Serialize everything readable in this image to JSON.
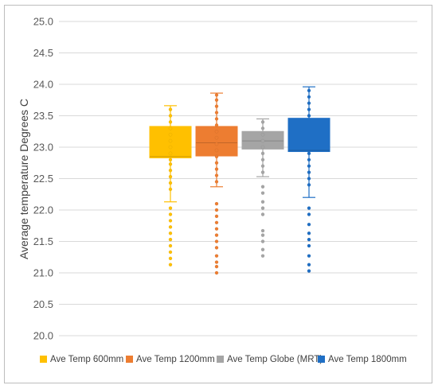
{
  "chart_data": {
    "type": "box",
    "title": "",
    "ylabel": "Average temperature Degrees C",
    "ylim": [
      20.0,
      25.0
    ],
    "ytick_step": 0.5,
    "yticks": [
      "20.0",
      "20.5",
      "21.0",
      "21.5",
      "22.0",
      "22.5",
      "23.0",
      "23.5",
      "24.0",
      "24.5",
      "25.0"
    ],
    "grid": true,
    "legend_position": "bottom",
    "series": [
      {
        "name": "Ave Temp 600mm",
        "color": "#ffc000",
        "q1": 22.83,
        "median": 22.85,
        "q3": 23.33,
        "whisker_low": 22.13,
        "whisker_high": 23.66,
        "points": [
          21.13,
          21.23,
          21.33,
          21.43,
          21.53,
          21.63,
          21.73,
          21.83,
          21.93,
          22.03,
          22.33,
          22.43,
          22.53,
          22.63,
          22.73,
          22.8,
          22.9,
          23.0,
          23.1,
          23.2,
          23.3,
          23.4,
          23.5,
          23.6
        ]
      },
      {
        "name": "Ave Temp 1200mm",
        "color": "#ed7d31",
        "q1": 22.86,
        "median": 23.07,
        "q3": 23.33,
        "whisker_low": 22.37,
        "whisker_high": 23.86,
        "points": [
          21.0,
          21.1,
          21.17,
          21.27,
          21.4,
          21.5,
          21.6,
          21.7,
          21.8,
          21.9,
          22.0,
          22.1,
          22.45,
          22.55,
          22.65,
          22.75,
          22.85,
          22.95,
          23.05,
          23.15,
          23.25,
          23.35,
          23.45,
          23.55,
          23.65,
          23.75,
          23.83
        ]
      },
      {
        "name": "Ave Temp Globe (MRT)",
        "color": "#a5a5a5",
        "q1": 22.97,
        "median": 23.1,
        "q3": 23.25,
        "whisker_low": 22.53,
        "whisker_high": 23.45,
        "points": [
          21.27,
          21.37,
          21.5,
          21.6,
          21.67,
          21.93,
          22.03,
          22.13,
          22.27,
          22.37,
          22.6,
          22.7,
          22.8,
          22.9,
          23.0,
          23.1,
          23.2,
          23.3,
          23.4
        ]
      },
      {
        "name": "Ave Temp 1800mm",
        "color": "#1f6fc5",
        "q1": 22.93,
        "median": 22.95,
        "q3": 23.46,
        "whisker_low": 22.2,
        "whisker_high": 23.96,
        "points": [
          21.03,
          21.13,
          21.27,
          21.43,
          21.53,
          21.63,
          21.77,
          21.93,
          22.03,
          22.4,
          22.5,
          22.6,
          22.7,
          22.8,
          22.9,
          23.5,
          23.6,
          23.7,
          23.8,
          23.9
        ]
      }
    ]
  }
}
